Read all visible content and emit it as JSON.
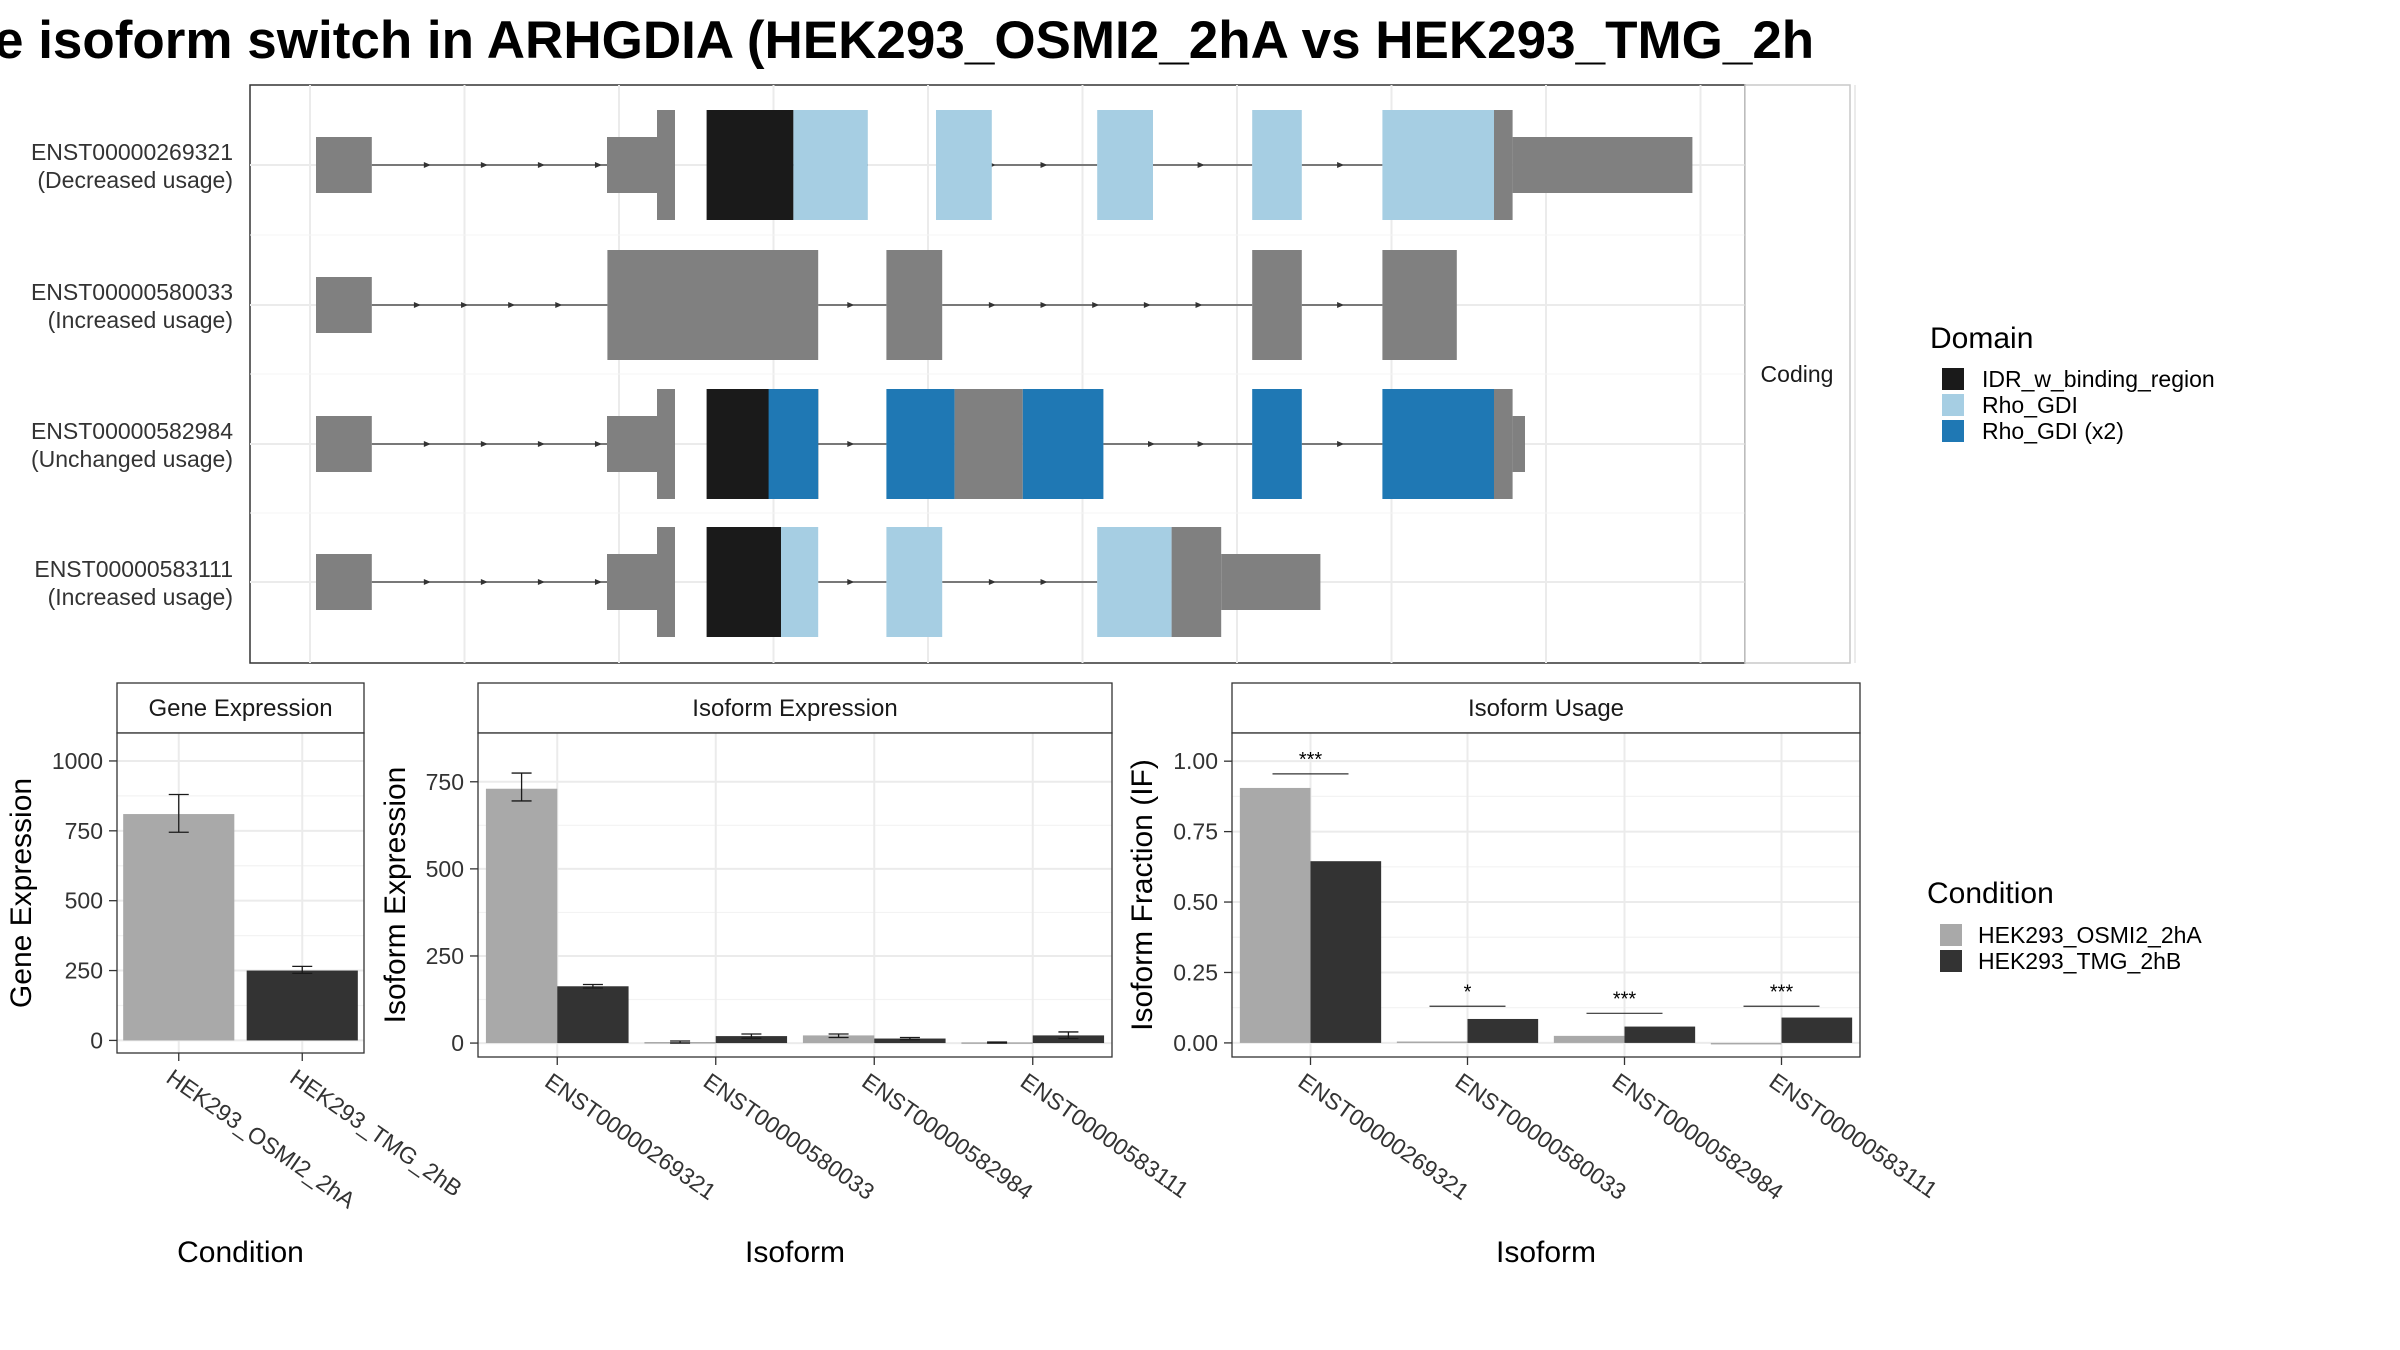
{
  "title": "e isoform switch in ARHGDIA (HEK293_OSMI2_2hA vs HEK293_TMG_2h",
  "colors": {
    "utr": "#808080",
    "IDR_w_binding_region": "#1a1a1a",
    "Rho_GDI": "#a6cee3",
    "Rho_GDI_x2": "#1f78b4",
    "cond1": "#a9a9a9",
    "cond2": "#333333"
  },
  "structure": {
    "facet_label": "Coding",
    "isoforms": [
      {
        "id": "ENST00000269321",
        "usage": "(Decreased usage)",
        "introns": [
          [
            0.9,
            5.5
          ],
          [
            6.7,
            8.9
          ],
          [
            10.1,
            12.6
          ],
          [
            13.5,
            15.1
          ],
          [
            15.9,
            17.2
          ]
        ],
        "segments": [
          [
            0,
            0.9,
            "utr"
          ],
          [
            5.5,
            5.5,
            "utr_step"
          ],
          [
            6.3,
            7.7,
            "IDR_w_binding_region"
          ],
          [
            7.7,
            8.9,
            "Rho_GDI"
          ],
          [
            10.0,
            10.9,
            "Rho_GDI"
          ],
          [
            12.6,
            13.5,
            "Rho_GDI"
          ],
          [
            15.1,
            15.9,
            "Rho_GDI"
          ],
          [
            17.2,
            19.0,
            "Rho_GDI"
          ],
          [
            19.0,
            19.3,
            "utr_thick"
          ],
          [
            19.3,
            22.2,
            "utr"
          ]
        ]
      },
      {
        "id": "ENST00000580033",
        "usage": "(Increased usage)",
        "introns": [
          [
            0.9,
            4.7
          ],
          [
            8.1,
            9.2
          ],
          [
            10.1,
            15.1
          ],
          [
            15.9,
            17.2
          ]
        ],
        "segments": [
          [
            0,
            0.9,
            "utr"
          ],
          [
            4.7,
            8.1,
            "utr_thick"
          ],
          [
            9.2,
            10.1,
            "utr_thick"
          ],
          [
            15.1,
            15.9,
            "utr_thick"
          ],
          [
            17.2,
            18.4,
            "utr_thick"
          ]
        ]
      },
      {
        "id": "ENST00000582984",
        "usage": "(Unchanged usage)",
        "introns": [
          [
            0.9,
            5.5
          ],
          [
            8.1,
            9.2
          ],
          [
            12.7,
            15.1
          ],
          [
            15.9,
            17.2
          ]
        ],
        "segments": [
          [
            0,
            0.9,
            "utr"
          ],
          [
            5.5,
            5.5,
            "utr_step"
          ],
          [
            6.3,
            8.1,
            "IDR_w_binding_region"
          ],
          [
            7.3,
            8.1,
            "Rho_GDI_x2"
          ],
          [
            9.2,
            10.3,
            "Rho_GDI_x2"
          ],
          [
            10.3,
            11.4,
            "utr_thick"
          ],
          [
            11.4,
            12.7,
            "Rho_GDI_x2"
          ],
          [
            15.1,
            15.9,
            "Rho_GDI_x2"
          ],
          [
            17.2,
            19.0,
            "Rho_GDI_x2"
          ],
          [
            19.0,
            19.3,
            "utr_thick"
          ],
          [
            19.3,
            19.5,
            "utr"
          ]
        ]
      },
      {
        "id": "ENST00000583111",
        "usage": "(Increased usage)",
        "introns": [
          [
            0.9,
            5.5
          ],
          [
            8.1,
            9.2
          ],
          [
            10.1,
            12.6
          ]
        ],
        "segments": [
          [
            0,
            0.9,
            "utr"
          ],
          [
            5.5,
            5.5,
            "utr_step"
          ],
          [
            6.3,
            7.5,
            "IDR_w_binding_region"
          ],
          [
            7.5,
            8.1,
            "Rho_GDI"
          ],
          [
            9.2,
            10.1,
            "Rho_GDI"
          ],
          [
            12.6,
            13.8,
            "Rho_GDI"
          ],
          [
            13.8,
            14.6,
            "utr_thick"
          ],
          [
            14.6,
            16.2,
            "utr"
          ]
        ]
      }
    ]
  },
  "legends": {
    "domain": {
      "title": "Domain",
      "items": [
        {
          "label": "IDR_w_binding_region",
          "color": "#1a1a1a"
        },
        {
          "label": "Rho_GDI",
          "color": "#a6cee3"
        },
        {
          "label": "Rho_GDI (x2)",
          "color": "#1f78b4"
        }
      ]
    },
    "condition": {
      "title": "Condition",
      "items": [
        {
          "label": "HEK293_OSMI2_2hA",
          "color": "#a9a9a9"
        },
        {
          "label": "HEK293_TMG_2hB",
          "color": "#333333"
        }
      ]
    }
  },
  "chart_data": [
    {
      "type": "bar",
      "title": "Gene Expression",
      "xlabel": "Condition",
      "ylabel": "Gene Expression",
      "categories": [
        "HEK293_OSMI2_2hA",
        "HEK293_TMG_2hB"
      ],
      "values": [
        810,
        250
      ],
      "errors": [
        [
          745,
          880
        ],
        [
          240,
          265
        ]
      ],
      "ylim": [
        -45,
        1100
      ],
      "yticks": [
        0,
        250,
        500,
        750,
        1000
      ],
      "ytick_labels": [
        "0",
        "250",
        "500",
        "750",
        "1000"
      ],
      "grid": true
    },
    {
      "type": "bar",
      "title": "Isoform Expression",
      "xlabel": "Isoform",
      "ylabel": "Isoform Expression",
      "categories": [
        "ENST00000269321",
        "ENST00000580033",
        "ENST00000582984",
        "ENST00000583111"
      ],
      "series": [
        {
          "name": "HEK293_OSMI2_2hA",
          "values": [
            730,
            3,
            22,
            2
          ],
          "errors": [
            [
              695,
              775
            ],
            [
              0,
              6
            ],
            [
              16,
              26
            ],
            [
              0,
              3
            ]
          ]
        },
        {
          "name": "HEK293_TMG_2hB",
          "values": [
            163,
            20,
            13,
            22
          ],
          "errors": [
            [
              158,
              168
            ],
            [
              14,
              26
            ],
            [
              10,
              16
            ],
            [
              13,
              32
            ]
          ]
        }
      ],
      "ylim": [
        -40,
        890
      ],
      "yticks": [
        0,
        250,
        500,
        750
      ],
      "ytick_labels": [
        "0",
        "250",
        "500",
        "750"
      ],
      "grid": true
    },
    {
      "type": "bar",
      "title": "Isoform Usage",
      "xlabel": "Isoform",
      "ylabel": "Isoform Fraction (IF)",
      "categories": [
        "ENST00000269321",
        "ENST00000580033",
        "ENST00000582984",
        "ENST00000583111"
      ],
      "series": [
        {
          "name": "HEK293_OSMI2_2hA",
          "values": [
            0.905,
            0.005,
            0.025,
            0.0
          ]
        },
        {
          "name": "HEK293_TMG_2hB",
          "values": [
            0.645,
            0.085,
            0.058,
            0.09
          ]
        }
      ],
      "significance": [
        "***",
        "*",
        "***",
        "***"
      ],
      "sig_level": [
        0.955,
        0.13,
        0.105,
        0.13
      ],
      "ylim": [
        -0.05,
        1.1
      ],
      "yticks": [
        0.0,
        0.25,
        0.5,
        0.75,
        1.0
      ],
      "ytick_labels": [
        "0.00",
        "0.25",
        "0.50",
        "0.75",
        "1.00"
      ],
      "grid": true
    }
  ]
}
